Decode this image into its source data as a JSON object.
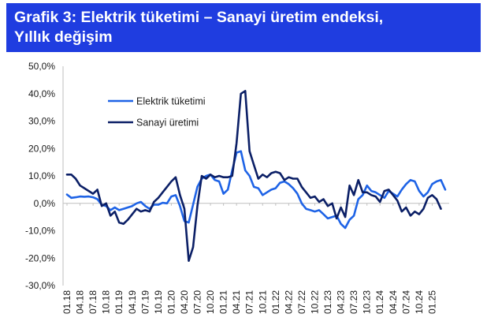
{
  "title": "Grafik 3: Elektrik tüketimi – Sanayi üretim endeksi,\nYıllık değişim",
  "colors": {
    "banner": "#1f3de0",
    "elektrik": "#1e63e6",
    "sanayi": "#0b1f66",
    "grid": "#bfbfbf"
  },
  "chart_data": {
    "type": "line",
    "title": "Grafik 3: Elektrik tüketimi – Sanayi üretim endeksi, Yıllık değişim",
    "xlabel": "",
    "ylabel": "",
    "ylim": [
      -30,
      50
    ],
    "yticks": [
      -30,
      -20,
      -10,
      0,
      10,
      20,
      30,
      40,
      50
    ],
    "ytick_labels": [
      "-30,0%",
      "-20,0%",
      "-10,0%",
      "0,0%",
      "10,0%",
      "20,0%",
      "30,0%",
      "40,0%",
      "50,0%"
    ],
    "xtick_labels": [
      "01.18",
      "04.18",
      "07.18",
      "10.18",
      "01.19",
      "04.19",
      "07.19",
      "10.19",
      "01.20",
      "04.20",
      "07.20",
      "10.20",
      "01.21",
      "04.21",
      "07.21",
      "10.21",
      "01.22",
      "04.22",
      "07.22",
      "10.22",
      "01.23",
      "04.23",
      "07.23",
      "10.23",
      "01.24",
      "04.24",
      "07.24",
      "10.24",
      "01.25"
    ],
    "x_start": "01.18",
    "grid": false,
    "legend": "upper-left inside plot",
    "series": [
      {
        "name": "Elektrik tüketimi",
        "values": [
          3.2,
          2.0,
          2.2,
          2.5,
          2.4,
          2.5,
          2.2,
          1.5,
          -0.5,
          -1.0,
          -2.5,
          -1.5,
          -2.5,
          -2.0,
          -1.5,
          -1.0,
          0.0,
          0.5,
          -1.0,
          -2.0,
          -0.5,
          -0.5,
          0.2,
          0.0,
          2.5,
          3.0,
          -1.0,
          -6.5,
          -7.0,
          -0.5,
          6.0,
          9.0,
          10.0,
          10.5,
          8.5,
          8.0,
          3.5,
          5.0,
          12.0,
          18.5,
          19.0,
          12.0,
          10.0,
          6.0,
          5.5,
          3.0,
          4.0,
          5.0,
          5.5,
          7.5,
          8.0,
          7.0,
          5.5,
          3.5,
          0.0,
          -2.0,
          -2.5,
          -3.0,
          -2.5,
          -4.0,
          -5.5,
          -5.0,
          -4.5,
          -7.5,
          -9.0,
          -6.0,
          -4.5,
          1.5,
          3.0,
          6.5,
          4.5,
          4.0,
          3.0,
          2.0,
          4.5,
          3.5,
          2.5,
          5.0,
          7.0,
          8.5,
          8.0,
          4.5,
          2.5,
          4.0,
          7.0,
          8.0,
          8.5,
          5.0
        ]
      },
      {
        "name": "Sanayi üretimi",
        "values": [
          10.5,
          10.5,
          9.0,
          6.5,
          5.5,
          4.5,
          3.5,
          5.0,
          -1.0,
          0.0,
          -4.5,
          -3.0,
          -7.0,
          -7.5,
          -6.0,
          -4.0,
          -2.0,
          -3.0,
          -2.5,
          -3.0,
          0.5,
          2.0,
          4.0,
          6.0,
          8.0,
          9.5,
          3.0,
          -2.0,
          -21.0,
          -16.0,
          -1.0,
          10.0,
          9.0,
          10.5,
          9.5,
          10.0,
          9.5,
          9.5,
          10.0,
          22.0,
          40.0,
          41.0,
          19.0,
          14.0,
          9.0,
          10.5,
          9.5,
          11.0,
          11.5,
          11.0,
          8.5,
          9.5,
          9.0,
          9.0,
          6.0,
          4.0,
          2.0,
          2.5,
          0.5,
          1.5,
          -1.0,
          0.0,
          -5.5,
          -1.5,
          -5.0,
          6.5,
          3.0,
          8.5,
          4.0,
          4.0,
          3.0,
          2.5,
          0.5,
          4.5,
          5.0,
          3.0,
          1.0,
          -3.0,
          -1.5,
          -4.5,
          -3.0,
          -4.0,
          -2.0,
          2.0,
          3.0,
          1.5,
          -2.0
        ]
      }
    ]
  }
}
